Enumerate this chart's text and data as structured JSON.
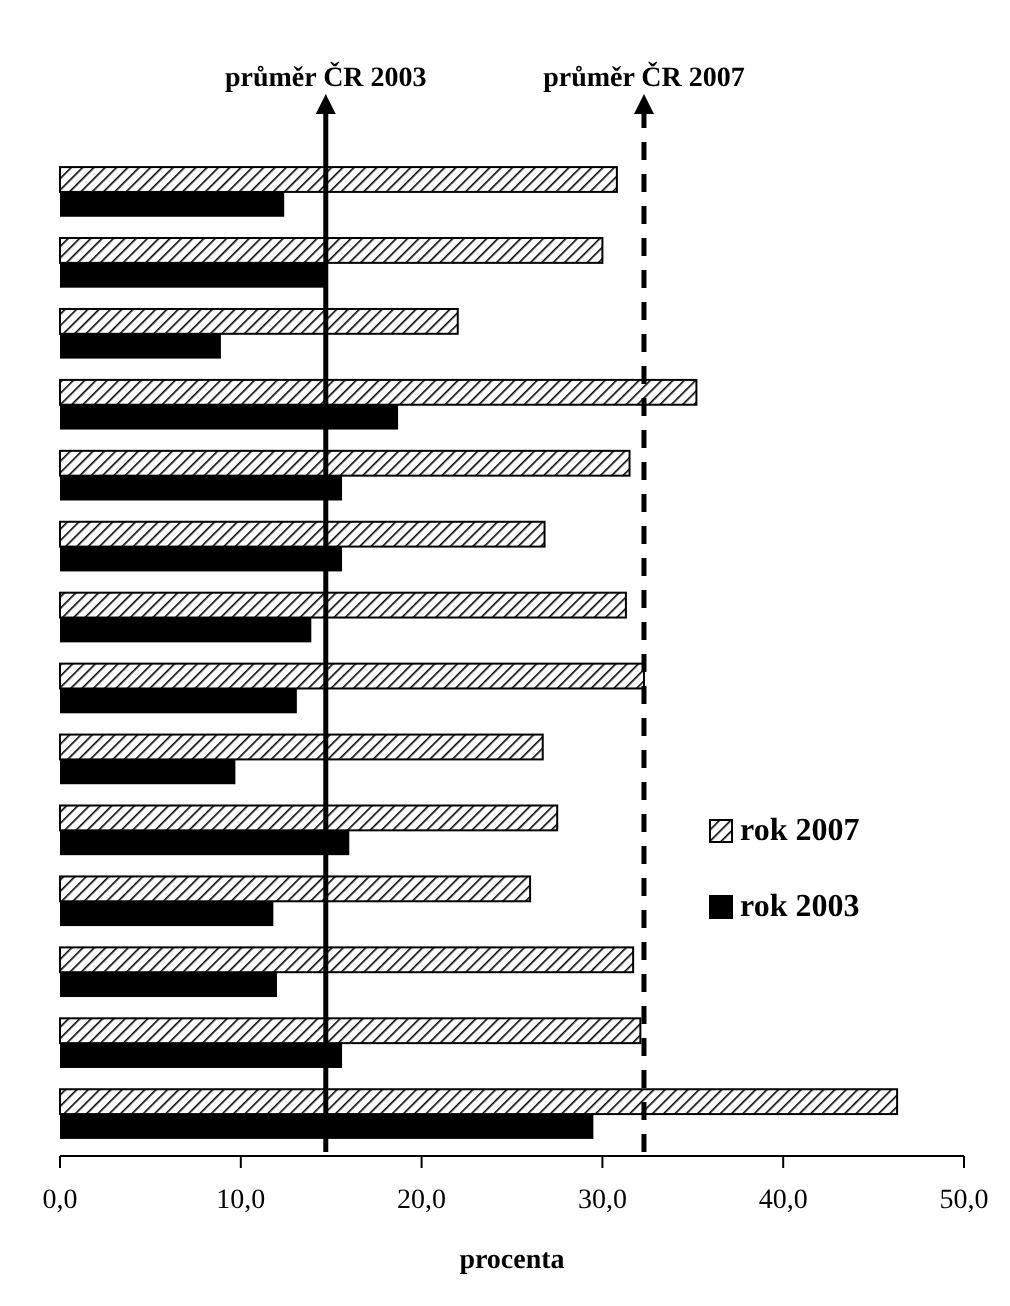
{
  "chart_data": {
    "type": "bar",
    "orientation": "horizontal",
    "xlabel": "procenta",
    "categories": [
      null,
      null,
      null,
      null,
      null,
      null,
      null,
      null,
      null,
      null,
      null,
      null,
      null,
      null
    ],
    "series": [
      {
        "name": "rok 2007",
        "color": "#000000",
        "values": [
          30.8,
          30.0,
          22.0,
          35.2,
          31.5,
          26.8,
          31.3,
          32.3,
          26.7,
          27.5,
          26.0,
          31.7,
          32.1,
          46.3
        ]
      },
      {
        "name": "rok 2003",
        "color": "#000000",
        "values": [
          12.4,
          14.8,
          8.9,
          18.7,
          15.6,
          15.6,
          13.9,
          13.1,
          9.7,
          16.0,
          11.8,
          12.0,
          15.6,
          29.5
        ]
      }
    ],
    "xlim": [
      0,
      50
    ],
    "xticks": [
      {
        "value": 0,
        "label": "0,0"
      },
      {
        "value": 10,
        "label": "10,0"
      },
      {
        "value": 20,
        "label": "20,0"
      },
      {
        "value": 30,
        "label": "30,0"
      },
      {
        "value": 40,
        "label": "40,0"
      },
      {
        "value": 50,
        "label": "50,0"
      }
    ],
    "ref_lines": [
      {
        "axis": "x",
        "value": 14.7,
        "label": "průměr ČR 2003",
        "line_style": "solid",
        "color": "#000000"
      },
      {
        "axis": "x",
        "value": 32.3,
        "label": "průměr ČR 2007",
        "line_style": "dashed",
        "color": "#000000"
      }
    ],
    "legend": "right",
    "grid": false
  }
}
